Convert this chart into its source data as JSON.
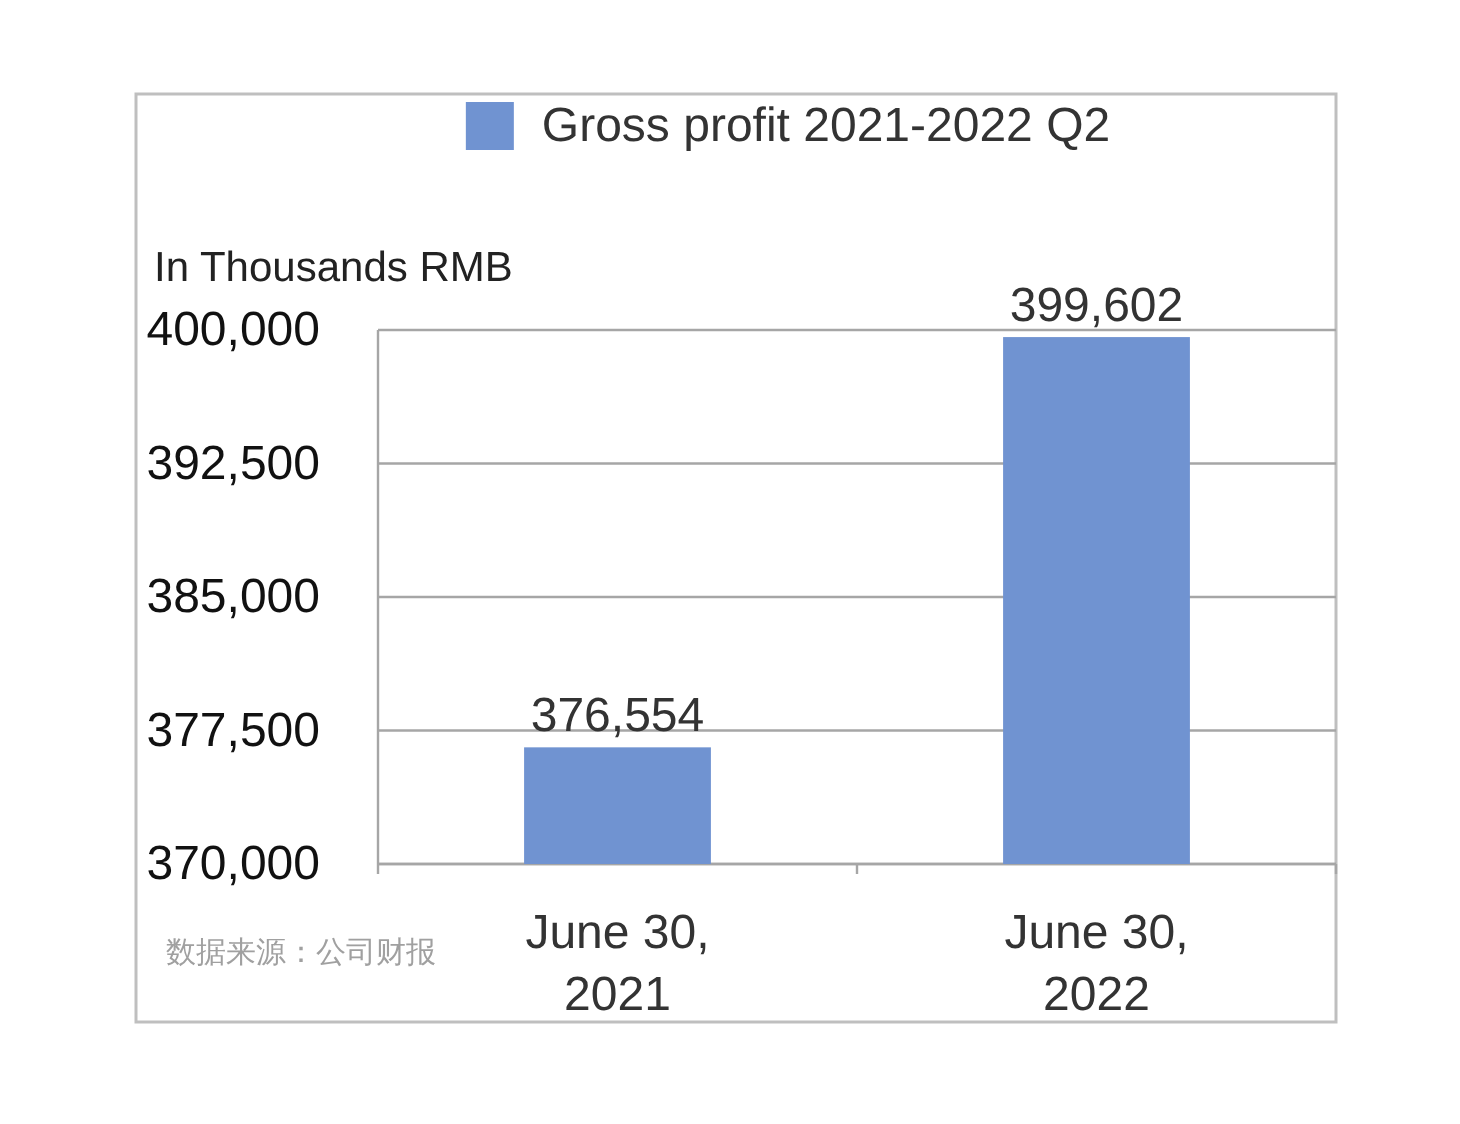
{
  "chart_data": {
    "type": "bar",
    "categories": [
      "June 30, 2021",
      "June 30, 2022"
    ],
    "series": [
      {
        "name": "Gross profit 2021-2022 Q2",
        "color": "#7093d1",
        "values": [
          376554,
          399602
        ],
        "value_labels": [
          "376,554",
          "399,602"
        ]
      }
    ],
    "ylabel": "In Thousands RMB",
    "ylim": [
      370000,
      400000
    ],
    "yticks": [
      {
        "value": 370000,
        "label": "370,000"
      },
      {
        "value": 377500,
        "label": "377,500"
      },
      {
        "value": 385000,
        "label": "385,000"
      },
      {
        "value": 392500,
        "label": "392,500"
      },
      {
        "value": 400000,
        "label": "400,000"
      }
    ],
    "grid": "y",
    "legend": "top",
    "annotations": [
      "数据来源：公司财报"
    ]
  }
}
